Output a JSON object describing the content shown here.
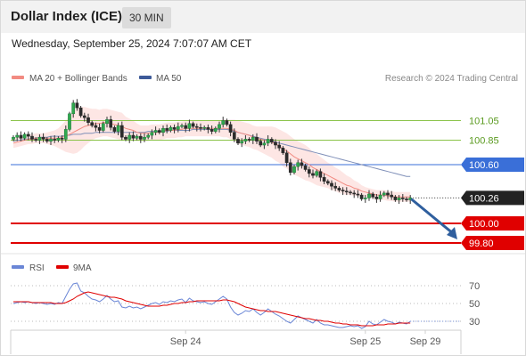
{
  "header": {
    "title": "Dollar Index (ICE)",
    "timeframe": "30 MIN"
  },
  "datetime": "Wednesday, September 25, 2024 7:07:07 AM CET",
  "legend": {
    "ma20_label": "MA 20 + Bollinger Bands",
    "ma50_label": "MA 50",
    "ma20_color": "#f28b82",
    "ma50_color": "#3d5a99",
    "credit": "Research © 2024 Trading Central"
  },
  "colors": {
    "resistance": "#8bc34a",
    "pivot": "#3a6fd8",
    "support": "#e00000",
    "price_tag": "#222222",
    "arrow": "#2f5f9e",
    "rsi": "#6a86d6",
    "rsi_ma": "#e00000"
  },
  "chart_data": [
    {
      "type": "candlestick",
      "title": "Dollar Index (ICE)",
      "interval": "30 MIN",
      "y_range": [
        99.7,
        101.4
      ],
      "levels": [
        {
          "value": 101.05,
          "label": "101.05",
          "kind": "resistance"
        },
        {
          "value": 100.85,
          "label": "100.85",
          "kind": "resistance"
        },
        {
          "value": 100.6,
          "label": "100.60",
          "kind": "pivot"
        },
        {
          "value": 100.26,
          "label": "100.26",
          "kind": "last"
        },
        {
          "value": 100.0,
          "label": "100.00",
          "kind": "support"
        },
        {
          "value": 99.8,
          "label": "99.80",
          "kind": "support"
        }
      ],
      "x_ticks": [
        {
          "i": 46,
          "label": "Sep 24"
        },
        {
          "i": 94,
          "label": "Sep 25"
        },
        {
          "i": 110,
          "label": "Sep 29"
        }
      ],
      "close": [
        100.88,
        100.9,
        100.87,
        100.91,
        100.89,
        100.86,
        100.85,
        100.88,
        100.86,
        100.84,
        100.86,
        100.85,
        100.87,
        100.86,
        100.96,
        101.12,
        101.23,
        101.18,
        101.1,
        101.08,
        101.03,
        101.0,
        100.98,
        100.95,
        101.02,
        101.06,
        100.98,
        100.94,
        101.0,
        100.88,
        100.86,
        100.9,
        100.87,
        100.89,
        100.86,
        100.88,
        100.9,
        100.93,
        100.95,
        100.93,
        100.97,
        100.95,
        100.98,
        100.96,
        100.99,
        101.0,
        100.97,
        101.02,
        100.99,
        100.98,
        100.97,
        100.98,
        100.96,
        100.94,
        100.97,
        101.01,
        101.05,
        101.01,
        100.93,
        100.86,
        100.82,
        100.84,
        100.86,
        100.85,
        100.88,
        100.84,
        100.8,
        100.82,
        100.86,
        100.83,
        100.8,
        100.77,
        100.72,
        100.62,
        100.52,
        100.58,
        100.62,
        100.59,
        100.55,
        100.51,
        100.49,
        100.53,
        100.47,
        100.43,
        100.41,
        100.38,
        100.36,
        100.34,
        100.33,
        100.32,
        100.31,
        100.3,
        100.29,
        100.25,
        100.26,
        100.3,
        100.27,
        100.25,
        100.29,
        100.31,
        100.29,
        100.27,
        100.24,
        100.26,
        100.25,
        100.24,
        100.26
      ],
      "ma20": [
        100.82,
        100.83,
        100.84,
        100.85,
        100.86,
        100.86,
        100.87,
        100.87,
        100.87,
        100.87,
        100.87,
        100.87,
        100.87,
        100.88,
        100.89,
        100.91,
        100.93,
        100.95,
        100.97,
        100.99,
        101.0,
        101.01,
        101.02,
        101.02,
        101.03,
        101.03,
        101.02,
        101.01,
        101.0,
        100.99,
        100.97,
        100.96,
        100.95,
        100.93,
        100.92,
        100.92,
        100.92,
        100.93,
        100.93,
        100.93,
        100.94,
        100.95,
        100.95,
        100.95,
        100.96,
        100.96,
        100.97,
        100.97,
        100.97,
        100.97,
        100.97,
        100.97,
        100.97,
        100.97,
        100.97,
        100.97,
        100.97,
        100.97,
        100.96,
        100.95,
        100.93,
        100.92,
        100.91,
        100.9,
        100.88,
        100.87,
        100.86,
        100.85,
        100.84,
        100.83,
        100.81,
        100.79,
        100.76,
        100.74,
        100.71,
        100.68,
        100.66,
        100.64,
        100.62,
        100.6,
        100.57,
        100.55,
        100.53,
        100.51,
        100.49,
        100.47,
        100.45,
        100.43,
        100.41,
        100.39,
        100.38,
        100.36,
        100.35,
        100.33,
        100.32,
        100.31,
        100.3,
        100.29,
        100.29,
        100.29,
        100.28,
        100.28,
        100.27,
        100.27,
        100.27,
        100.27,
        100.27
      ],
      "ma50": [
        100.84,
        100.85,
        100.85,
        100.86,
        100.86,
        100.87,
        100.87,
        100.88,
        100.88,
        100.88,
        100.89,
        100.89,
        100.89,
        100.89,
        100.9,
        100.9,
        100.91,
        100.91,
        100.91,
        100.92,
        100.92,
        100.92,
        100.93,
        100.93,
        100.93,
        100.93,
        100.93,
        100.93,
        100.93,
        100.93,
        100.93,
        100.93,
        100.93,
        100.93,
        100.93,
        100.93,
        100.94,
        100.94,
        100.94,
        100.94,
        100.94,
        100.94,
        100.95,
        100.95,
        100.95,
        100.95,
        100.95,
        100.95,
        100.96,
        100.96,
        100.96,
        100.96,
        100.96,
        100.96,
        100.96,
        100.96,
        100.96,
        100.96,
        100.95,
        100.94,
        100.93,
        100.92,
        100.91,
        100.9,
        100.89,
        100.88,
        100.87,
        100.86,
        100.85,
        100.84,
        100.83,
        100.82,
        100.81,
        100.8,
        100.79,
        100.78,
        100.77,
        100.76,
        100.75,
        100.74,
        100.73,
        100.72,
        100.71,
        100.7,
        100.69,
        100.68,
        100.67,
        100.66,
        100.65,
        100.64,
        100.63,
        100.62,
        100.61,
        100.6,
        100.59,
        100.58,
        100.57,
        100.56,
        100.55,
        100.54,
        100.53,
        100.52,
        100.51,
        100.5,
        100.49,
        100.48,
        100.48
      ],
      "band_width": [
        0.05,
        0.05,
        0.05,
        0.05,
        0.05,
        0.05,
        0.05,
        0.05,
        0.05,
        0.06,
        0.07,
        0.08,
        0.1,
        0.13,
        0.16,
        0.19,
        0.22,
        0.23,
        0.22,
        0.2,
        0.18,
        0.16,
        0.15,
        0.14,
        0.14,
        0.14,
        0.14,
        0.14,
        0.14,
        0.14,
        0.12,
        0.11,
        0.1,
        0.09,
        0.08,
        0.08,
        0.08,
        0.08,
        0.08,
        0.08,
        0.08,
        0.08,
        0.08,
        0.08,
        0.08,
        0.08,
        0.08,
        0.08,
        0.08,
        0.08,
        0.08,
        0.08,
        0.08,
        0.08,
        0.08,
        0.08,
        0.09,
        0.09,
        0.1,
        0.11,
        0.12,
        0.12,
        0.12,
        0.12,
        0.12,
        0.12,
        0.13,
        0.14,
        0.15,
        0.16,
        0.17,
        0.17,
        0.18,
        0.18,
        0.18,
        0.18,
        0.18,
        0.18,
        0.18,
        0.17,
        0.16,
        0.16,
        0.15,
        0.14,
        0.13,
        0.13,
        0.12,
        0.12,
        0.11,
        0.1,
        0.09,
        0.08,
        0.07,
        0.06,
        0.05,
        0.05,
        0.05,
        0.05,
        0.05,
        0.05,
        0.05,
        0.05,
        0.05,
        0.05,
        0.05,
        0.05,
        0.05
      ],
      "forecast_arrow": {
        "from": 100.26,
        "to": 99.8
      }
    },
    {
      "type": "line",
      "series_names": [
        "RSI",
        "9MA"
      ],
      "y_range": [
        22,
        78
      ],
      "ref_levels": [
        70,
        50,
        30
      ],
      "ref_labels": [
        "70",
        "50",
        "30"
      ],
      "rsi": [
        50,
        51,
        52,
        51,
        52,
        51,
        50,
        51,
        50,
        49,
        50,
        49,
        51,
        50,
        58,
        66,
        72,
        73,
        64,
        62,
        58,
        55,
        54,
        52,
        55,
        59,
        55,
        52,
        53,
        46,
        45,
        47,
        45,
        46,
        44,
        46,
        48,
        50,
        51,
        49,
        52,
        51,
        53,
        52,
        54,
        55,
        51,
        56,
        53,
        52,
        51,
        52,
        50,
        49,
        52,
        55,
        58,
        55,
        46,
        40,
        37,
        39,
        42,
        41,
        44,
        40,
        37,
        40,
        44,
        41,
        38,
        36,
        33,
        30,
        28,
        32,
        36,
        34,
        32,
        30,
        28,
        32,
        28,
        26,
        26,
        25,
        24,
        23,
        23,
        24,
        25,
        24,
        25,
        22,
        24,
        30,
        27,
        26,
        29,
        32,
        30,
        29,
        27,
        29,
        28,
        27,
        30
      ],
      "rsi_ma": [
        52,
        52,
        52,
        52,
        52,
        51,
        51,
        51,
        51,
        51,
        51,
        50,
        50,
        50,
        51,
        53,
        55,
        58,
        60,
        62,
        63,
        62,
        61,
        60,
        59,
        58,
        57,
        57,
        56,
        55,
        53,
        52,
        51,
        50,
        49,
        48,
        47,
        47,
        47,
        47,
        48,
        48,
        49,
        50,
        50,
        51,
        51,
        52,
        52,
        53,
        53,
        53,
        53,
        53,
        53,
        53,
        54,
        54,
        53,
        52,
        50,
        48,
        46,
        45,
        44,
        43,
        42,
        42,
        41,
        41,
        41,
        40,
        39,
        38,
        37,
        36,
        35,
        34,
        33,
        33,
        32,
        31,
        31,
        30,
        30,
        29,
        28,
        28,
        27,
        27,
        26,
        26,
        26,
        25,
        25,
        25,
        25,
        26,
        26,
        26,
        27,
        27,
        27,
        28,
        28,
        28,
        28
      ]
    }
  ]
}
